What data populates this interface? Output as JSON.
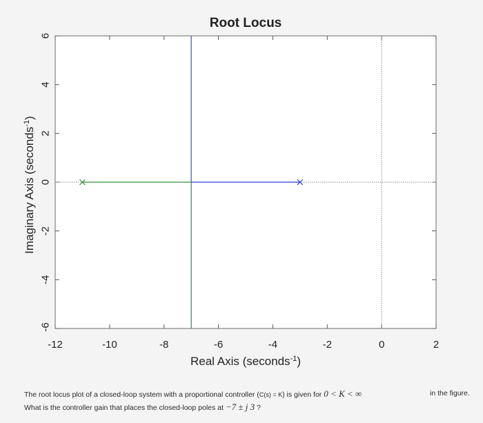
{
  "chart_data": {
    "type": "line",
    "title": "Root Locus",
    "xlabel": "Real Axis (seconds",
    "xlabel_sup": "-1",
    "xlabel_close": ")",
    "ylabel": "Imaginary Axis (seconds",
    "ylabel_sup": "-1",
    "ylabel_close": ")",
    "xlim": [
      -12,
      2
    ],
    "ylim": [
      -6,
      6
    ],
    "xticks": [
      -12,
      -10,
      -8,
      -6,
      -4,
      -2,
      0,
      2
    ],
    "xtick_labels": [
      "-12",
      "-10",
      "-8",
      "-6",
      "-4",
      "-2",
      "0",
      "2"
    ],
    "yticks": [
      -6,
      -4,
      -2,
      0,
      2,
      4,
      6
    ],
    "ytick_labels": [
      "-6",
      "-4",
      "-2",
      "0",
      "2",
      "4",
      "6"
    ],
    "grid": false,
    "poles": [
      {
        "x": -11,
        "y": 0
      },
      {
        "x": -3,
        "y": 0
      }
    ],
    "series": [
      {
        "color": "#3a8a3a",
        "x": [
          -11,
          -7
        ],
        "y": [
          0,
          0
        ]
      },
      {
        "color": "#2d3fd0",
        "x": [
          -3,
          -7
        ],
        "y": [
          0,
          0
        ]
      },
      {
        "color": "#3a5fd0",
        "x": [
          -7,
          -7
        ],
        "y": [
          0,
          6
        ]
      },
      {
        "color": "#3a8a6a",
        "x": [
          -7,
          -7
        ],
        "y": [
          0,
          -6
        ]
      }
    ],
    "dotted_lines": [
      {
        "orientation": "horizontal",
        "at": 0
      },
      {
        "orientation": "vertical",
        "at": 0
      }
    ]
  },
  "question": {
    "line1_a": "The root locus plot of a closed-loop system with a proportional controller (",
    "line1_cs": "C(s) = K",
    "line1_b": ") is given for",
    "line1_math": "0 < K < ∞",
    "line1_c": "in the figure.",
    "line2_a": "What is the controller gain that places the closed-loop poles at",
    "line2_math": "−7 ± j 3",
    "line2_b": "?"
  }
}
